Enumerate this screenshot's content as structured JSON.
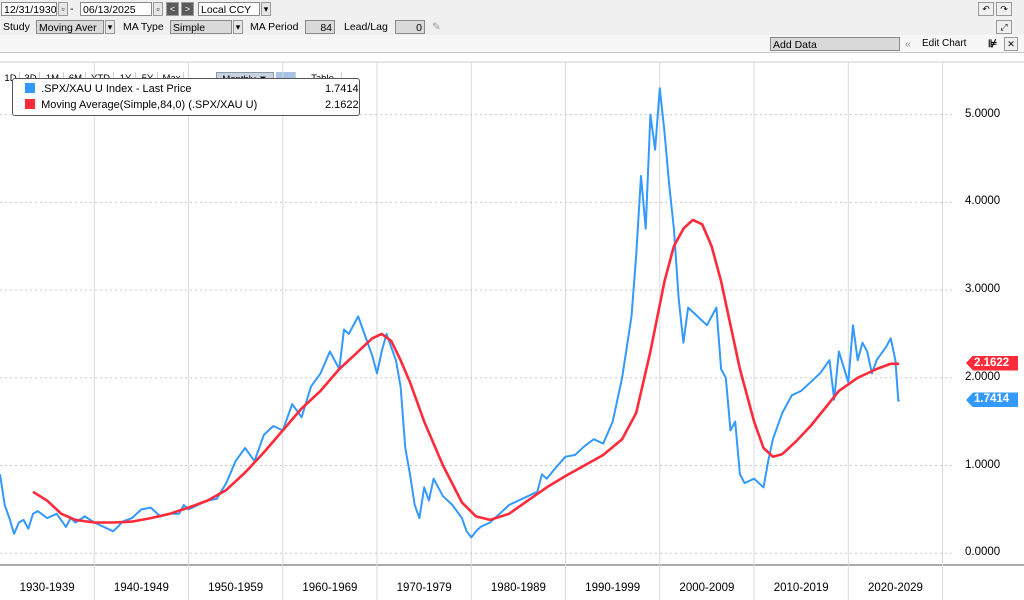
{
  "toolbar": {
    "start_date": "12/31/1930",
    "end_date": "06/13/2025",
    "currency": "Local CCY",
    "study_label": "Study",
    "study_value": "Moving Aver",
    "ma_type_label": "MA Type",
    "ma_type_value": "Simple",
    "ma_period_label": "MA Period",
    "ma_period_value": "84",
    "lead_lag_label": "Lead/Lag",
    "lead_lag_value": "0",
    "ranges": [
      "1D",
      "3D",
      "1M",
      "6M",
      "YTD",
      "1Y",
      "5Y",
      "Max"
    ],
    "frequency": "Monthly ▼",
    "table_label": "Table",
    "add_data": "Add Data",
    "edit_chart": "Edit Chart"
  },
  "colors": {
    "price": "#3399ff",
    "ma": "#ff2a3a"
  },
  "icons": [
    "calendar-icon",
    "chevron-left-icon",
    "chevron-right-icon",
    "dropdown-icon",
    "pencil-icon",
    "undo-icon",
    "maximize-icon",
    "close-icon",
    "chart-settings-icon"
  ],
  "chart_data": {
    "type": "line",
    "xlabel": "",
    "ylabel": "",
    "y_axis_side": "right",
    "ylim": [
      -0.1,
      5.6
    ],
    "xlim": [
      1930.0,
      2031.0
    ],
    "yticks": [
      "0.0000",
      "1.0000",
      "2.0000",
      "3.0000",
      "4.0000",
      "5.0000"
    ],
    "x_categories": [
      "1930-1939",
      "1940-1949",
      "1950-1959",
      "1960-1969",
      "1970-1979",
      "1980-1989",
      "1990-1999",
      "2000-2009",
      "2010-2019",
      "2020-2029"
    ],
    "legend_position": "top-left",
    "series": [
      {
        "name": ".SPX/XAU U Index - Last Price",
        "last_value": "1.7414",
        "x": [
          1930.0,
          1930.5,
          1931.0,
          1931.5,
          1932.0,
          1932.5,
          1933.0,
          1933.5,
          1934.0,
          1935.0,
          1936.0,
          1937.0,
          1937.5,
          1938.0,
          1939.0,
          1940.0,
          1941.0,
          1942.0,
          1942.5,
          1943.0,
          1944.0,
          1945.0,
          1946.0,
          1947.0,
          1948.0,
          1949.0,
          1949.5,
          1950.0,
          1951.0,
          1952.0,
          1953.0,
          1954.0,
          1955.0,
          1956.0,
          1957.0,
          1958.0,
          1959.0,
          1960.0,
          1961.0,
          1962.0,
          1963.0,
          1964.0,
          1965.0,
          1966.0,
          1966.5,
          1967.0,
          1968.0,
          1968.5,
          1969.0,
          1969.5,
          1970.0,
          1970.5,
          1971.0,
          1972.0,
          1972.5,
          1973.0,
          1973.5,
          1974.0,
          1974.5,
          1975.0,
          1975.5,
          1976.0,
          1976.5,
          1977.0,
          1978.0,
          1979.0,
          1979.5,
          1980.0,
          1980.5,
          1981.0,
          1982.0,
          1983.0,
          1984.0,
          1985.0,
          1986.0,
          1987.0,
          1987.5,
          1988.0,
          1989.0,
          1990.0,
          1991.0,
          1992.0,
          1993.0,
          1994.0,
          1995.0,
          1996.0,
          1997.0,
          1997.5,
          1998.0,
          1998.5,
          1999.0,
          1999.5,
          2000.0,
          2000.5,
          2001.0,
          2001.5,
          2002.0,
          2002.5,
          2003.0,
          2004.0,
          2005.0,
          2006.0,
          2006.5,
          2007.0,
          2007.5,
          2008.0,
          2008.5,
          2009.0,
          2010.0,
          2011.0,
          2011.5,
          2012.0,
          2013.0,
          2014.0,
          2015.0,
          2016.0,
          2017.0,
          2018.0,
          2018.5,
          2019.0,
          2020.0,
          2020.5,
          2021.0,
          2021.5,
          2022.0,
          2022.5,
          2023.0,
          2024.0,
          2024.5,
          2025.0,
          2025.3,
          2025.45
        ],
        "values": [
          0.9,
          0.55,
          0.4,
          0.22,
          0.35,
          0.38,
          0.28,
          0.45,
          0.48,
          0.4,
          0.45,
          0.3,
          0.4,
          0.35,
          0.42,
          0.35,
          0.3,
          0.25,
          0.3,
          0.36,
          0.4,
          0.5,
          0.52,
          0.42,
          0.45,
          0.45,
          0.55,
          0.5,
          0.55,
          0.6,
          0.62,
          0.8,
          1.05,
          1.2,
          1.05,
          1.35,
          1.45,
          1.4,
          1.7,
          1.55,
          1.9,
          2.05,
          2.3,
          2.1,
          2.55,
          2.5,
          2.7,
          2.55,
          2.4,
          2.25,
          2.05,
          2.3,
          2.5,
          2.2,
          1.9,
          1.2,
          0.9,
          0.55,
          0.4,
          0.75,
          0.6,
          0.85,
          0.75,
          0.65,
          0.55,
          0.4,
          0.25,
          0.18,
          0.25,
          0.3,
          0.35,
          0.45,
          0.55,
          0.6,
          0.65,
          0.7,
          0.9,
          0.85,
          0.98,
          1.1,
          1.12,
          1.22,
          1.3,
          1.25,
          1.5,
          2.0,
          2.7,
          3.4,
          4.3,
          3.7,
          5.0,
          4.6,
          5.3,
          4.8,
          4.2,
          3.7,
          2.9,
          2.4,
          2.8,
          2.7,
          2.6,
          2.8,
          2.1,
          2.0,
          1.4,
          1.5,
          0.9,
          0.8,
          0.85,
          0.75,
          1.05,
          1.3,
          1.6,
          1.8,
          1.85,
          1.95,
          2.05,
          2.2,
          1.75,
          2.3,
          1.95,
          2.6,
          2.2,
          2.4,
          2.3,
          2.05,
          2.2,
          2.35,
          2.45,
          2.2,
          1.74,
          1.74
        ]
      },
      {
        "name": "Moving Average(Simple,84,0) (.SPX/XAU U)",
        "last_value": "2.1622",
        "x": [
          1933.5,
          1935.0,
          1936.5,
          1938.0,
          1940.0,
          1942.0,
          1944.0,
          1946.0,
          1948.0,
          1950.0,
          1952.0,
          1954.0,
          1956.0,
          1958.0,
          1960.0,
          1962.0,
          1964.0,
          1966.0,
          1967.5,
          1968.5,
          1969.5,
          1970.5,
          1971.5,
          1972.5,
          1973.5,
          1975.0,
          1977.0,
          1979.0,
          1980.5,
          1982.0,
          1984.0,
          1986.0,
          1988.0,
          1990.0,
          1992.0,
          1994.0,
          1996.0,
          1997.5,
          1999.0,
          2000.5,
          2001.5,
          2002.5,
          2003.5,
          2004.5,
          2005.5,
          2006.5,
          2007.5,
          2008.5,
          2010.0,
          2011.0,
          2012.0,
          2013.0,
          2014.5,
          2016.0,
          2017.5,
          2019.0,
          2021.0,
          2023.0,
          2024.5,
          2025.4
        ],
        "values": [
          0.7,
          0.6,
          0.45,
          0.38,
          0.35,
          0.35,
          0.36,
          0.4,
          0.45,
          0.52,
          0.6,
          0.72,
          0.92,
          1.15,
          1.4,
          1.65,
          1.85,
          2.1,
          2.25,
          2.35,
          2.45,
          2.5,
          2.42,
          2.2,
          1.95,
          1.5,
          1.0,
          0.58,
          0.42,
          0.38,
          0.45,
          0.6,
          0.75,
          0.88,
          1.0,
          1.12,
          1.3,
          1.6,
          2.3,
          3.1,
          3.5,
          3.7,
          3.8,
          3.75,
          3.5,
          3.1,
          2.6,
          2.1,
          1.5,
          1.2,
          1.1,
          1.13,
          1.28,
          1.45,
          1.65,
          1.85,
          2.0,
          2.1,
          2.16,
          2.16
        ]
      }
    ]
  }
}
